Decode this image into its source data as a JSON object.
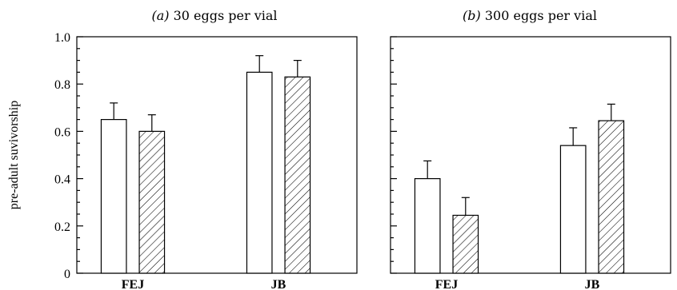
{
  "chart_data": [
    {
      "type": "bar",
      "title_prefix": "(a)",
      "title": "30 eggs per vial",
      "ylabel": "pre-adult suvivorship",
      "ylim": [
        0,
        1.0
      ],
      "yticks": [
        0,
        0.2,
        0.4,
        0.6,
        0.8,
        1.0
      ],
      "ytick_labels": [
        "0",
        "0.2",
        "0.4",
        "0.6",
        "0.8",
        "1.0"
      ],
      "categories": [
        "FEJ",
        "JB"
      ],
      "series": [
        {
          "fill": "open",
          "values": [
            0.65,
            0.85
          ],
          "errors": [
            0.07,
            0.07
          ]
        },
        {
          "fill": "hatched",
          "values": [
            0.6,
            0.83
          ],
          "errors": [
            0.07,
            0.07
          ]
        }
      ]
    },
    {
      "type": "bar",
      "title_prefix": "(b)",
      "title": "300 eggs per vial",
      "ylim": [
        0,
        1.0
      ],
      "yticks": [
        0,
        0.2,
        0.4,
        0.6,
        0.8,
        1.0
      ],
      "categories": [
        "FEJ",
        "JB"
      ],
      "series": [
        {
          "fill": "open",
          "values": [
            0.4,
            0.54
          ],
          "errors": [
            0.075,
            0.075
          ]
        },
        {
          "fill": "hatched",
          "values": [
            0.245,
            0.645
          ],
          "errors": [
            0.075,
            0.07
          ]
        }
      ]
    }
  ]
}
